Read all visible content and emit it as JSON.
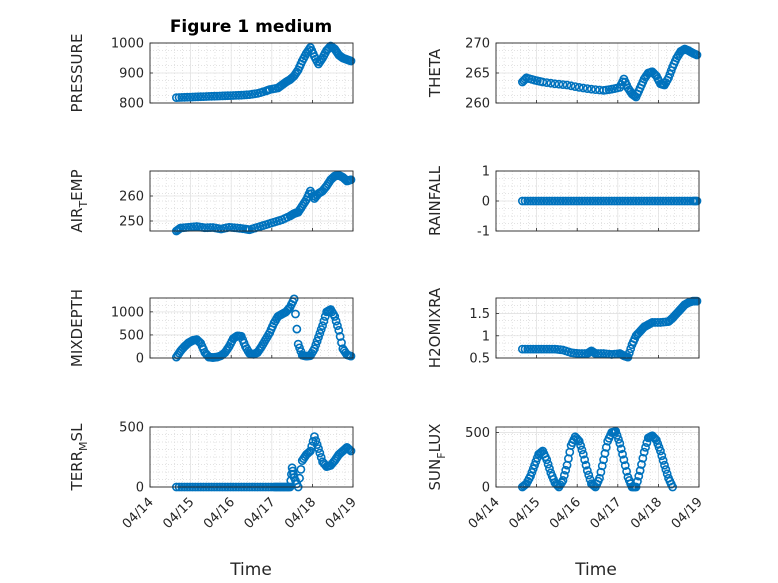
{
  "figure_title": "Figure 1 medium",
  "x_axis_label": "Time",
  "colors": {
    "marker": "#0072bd",
    "axes": "#262626",
    "grid": "#d9d9d9"
  },
  "chart_data": [
    {
      "type": "scatter",
      "ylabel": "PRESSURE",
      "ylim": [
        800,
        1000
      ],
      "yticks": [
        "800",
        "900",
        "1000"
      ],
      "xticks": [],
      "grid": true,
      "points": [
        [
          0.0,
          818
        ],
        [
          0.2,
          819
        ],
        [
          0.4,
          820
        ],
        [
          0.6,
          821
        ],
        [
          0.8,
          822
        ],
        [
          1.0,
          823
        ],
        [
          1.2,
          824
        ],
        [
          1.4,
          825
        ],
        [
          1.6,
          826
        ],
        [
          1.8,
          828
        ],
        [
          2.0,
          832
        ],
        [
          2.2,
          840
        ],
        [
          2.3,
          845
        ],
        [
          2.5,
          850
        ],
        [
          2.6,
          860
        ],
        [
          2.7,
          870
        ],
        [
          2.8,
          878
        ],
        [
          2.9,
          890
        ],
        [
          3.0,
          910
        ],
        [
          3.1,
          940
        ],
        [
          3.2,
          965
        ],
        [
          3.3,
          985
        ],
        [
          3.4,
          955
        ],
        [
          3.5,
          930
        ],
        [
          3.6,
          950
        ],
        [
          3.7,
          975
        ],
        [
          3.8,
          990
        ],
        [
          3.9,
          980
        ],
        [
          4.0,
          960
        ],
        [
          4.1,
          950
        ],
        [
          4.2,
          945
        ],
        [
          4.3,
          940
        ]
      ]
    },
    {
      "type": "scatter",
      "ylabel": "THETA",
      "ylim": [
        260,
        270
      ],
      "yticks": [
        "260",
        "265",
        "270"
      ],
      "xticks": [],
      "grid": true,
      "points": [
        [
          0.0,
          263.5
        ],
        [
          0.1,
          264.2
        ],
        [
          0.3,
          263.8
        ],
        [
          0.5,
          263.5
        ],
        [
          0.8,
          263.2
        ],
        [
          1.1,
          263.0
        ],
        [
          1.4,
          262.6
        ],
        [
          1.7,
          262.3
        ],
        [
          2.0,
          262.1
        ],
        [
          2.2,
          262.3
        ],
        [
          2.4,
          262.6
        ],
        [
          2.5,
          264.0
        ],
        [
          2.6,
          262.5
        ],
        [
          2.7,
          261.5
        ],
        [
          2.8,
          261.0
        ],
        [
          2.9,
          262.5
        ],
        [
          3.0,
          264.0
        ],
        [
          3.1,
          265.0
        ],
        [
          3.2,
          265.2
        ],
        [
          3.3,
          264.5
        ],
        [
          3.4,
          263.2
        ],
        [
          3.5,
          263.0
        ],
        [
          3.6,
          264.2
        ],
        [
          3.7,
          266.0
        ],
        [
          3.8,
          267.5
        ],
        [
          3.9,
          268.6
        ],
        [
          4.0,
          269.0
        ],
        [
          4.1,
          268.7
        ],
        [
          4.2,
          268.3
        ],
        [
          4.3,
          268.0
        ]
      ]
    },
    {
      "type": "scatter",
      "ylabel": "AIR_TEMP",
      "ylim": [
        246,
        270
      ],
      "yticks": [
        "250",
        "260"
      ],
      "xticks": [],
      "grid": true,
      "points": [
        [
          0.0,
          246.0
        ],
        [
          0.1,
          247.2
        ],
        [
          0.3,
          247.5
        ],
        [
          0.5,
          247.8
        ],
        [
          0.7,
          247.3
        ],
        [
          0.9,
          247.4
        ],
        [
          1.1,
          246.8
        ],
        [
          1.3,
          247.5
        ],
        [
          1.5,
          247.2
        ],
        [
          1.7,
          246.8
        ],
        [
          1.8,
          246.5
        ],
        [
          2.0,
          247.5
        ],
        [
          2.2,
          248.5
        ],
        [
          2.4,
          249.5
        ],
        [
          2.6,
          250.5
        ],
        [
          2.8,
          252.0
        ],
        [
          2.9,
          253.0
        ],
        [
          3.0,
          253.5
        ],
        [
          3.1,
          256.0
        ],
        [
          3.2,
          258.5
        ],
        [
          3.3,
          262.0
        ],
        [
          3.4,
          259.0
        ],
        [
          3.5,
          261.0
        ],
        [
          3.6,
          262.0
        ],
        [
          3.7,
          264.0
        ],
        [
          3.8,
          266.5
        ],
        [
          3.9,
          268.0
        ],
        [
          4.0,
          268.3
        ],
        [
          4.1,
          267.5
        ],
        [
          4.2,
          266.0
        ],
        [
          4.3,
          266.5
        ]
      ]
    },
    {
      "type": "scatter",
      "ylabel": "RAINFALL",
      "ylim": [
        -1,
        1
      ],
      "yticks": [
        "-1",
        "0",
        "1"
      ],
      "xticks": [],
      "grid": true,
      "points": [
        [
          0.0,
          0
        ],
        [
          0.2,
          0
        ],
        [
          0.4,
          0
        ],
        [
          0.6,
          0
        ],
        [
          0.8,
          0
        ],
        [
          1.0,
          0
        ],
        [
          1.2,
          0
        ],
        [
          1.4,
          0
        ],
        [
          1.6,
          0
        ],
        [
          1.8,
          0
        ],
        [
          2.0,
          0
        ],
        [
          2.2,
          0
        ],
        [
          2.4,
          0
        ],
        [
          2.6,
          0
        ],
        [
          2.8,
          0
        ],
        [
          3.0,
          0
        ],
        [
          3.2,
          0
        ],
        [
          3.4,
          0
        ],
        [
          3.6,
          0
        ],
        [
          3.8,
          0
        ],
        [
          4.0,
          0
        ],
        [
          4.2,
          0
        ],
        [
          4.3,
          0
        ]
      ]
    },
    {
      "type": "scatter",
      "ylabel": "MIXDEPTH",
      "ylim": [
        0,
        1300
      ],
      "yticks": [
        "0",
        "500",
        "1000"
      ],
      "xticks": [],
      "grid": true,
      "points": [
        [
          0.0,
          20
        ],
        [
          0.1,
          150
        ],
        [
          0.2,
          250
        ],
        [
          0.3,
          330
        ],
        [
          0.4,
          380
        ],
        [
          0.5,
          400
        ],
        [
          0.6,
          320
        ],
        [
          0.7,
          120
        ],
        [
          0.8,
          20
        ],
        [
          0.9,
          10
        ],
        [
          1.0,
          20
        ],
        [
          1.1,
          50
        ],
        [
          1.2,
          120
        ],
        [
          1.3,
          250
        ],
        [
          1.4,
          420
        ],
        [
          1.5,
          480
        ],
        [
          1.6,
          470
        ],
        [
          1.7,
          250
        ],
        [
          1.8,
          100
        ],
        [
          1.9,
          80
        ],
        [
          2.0,
          120
        ],
        [
          2.1,
          250
        ],
        [
          2.2,
          400
        ],
        [
          2.3,
          550
        ],
        [
          2.4,
          750
        ],
        [
          2.5,
          900
        ],
        [
          2.6,
          950
        ],
        [
          2.7,
          1000
        ],
        [
          2.8,
          1100
        ],
        [
          2.9,
          1280
        ],
        [
          3.0,
          300
        ],
        [
          3.1,
          60
        ],
        [
          3.2,
          40
        ],
        [
          3.3,
          50
        ],
        [
          3.4,
          200
        ],
        [
          3.5,
          450
        ],
        [
          3.6,
          700
        ],
        [
          3.7,
          1000
        ],
        [
          3.8,
          1050
        ],
        [
          3.9,
          900
        ],
        [
          4.0,
          600
        ],
        [
          4.1,
          200
        ],
        [
          4.2,
          70
        ],
        [
          4.3,
          40
        ]
      ]
    },
    {
      "type": "scatter",
      "ylabel": "H2OMIXRA",
      "ylim": [
        0.5,
        1.85
      ],
      "yticks": [
        "0.5",
        "1",
        "1.5"
      ],
      "xticks": [],
      "grid": true,
      "points": [
        [
          0.0,
          0.7
        ],
        [
          0.2,
          0.7
        ],
        [
          0.4,
          0.7
        ],
        [
          0.6,
          0.7
        ],
        [
          0.8,
          0.7
        ],
        [
          1.0,
          0.68
        ],
        [
          1.2,
          0.62
        ],
        [
          1.4,
          0.6
        ],
        [
          1.6,
          0.6
        ],
        [
          1.7,
          0.66
        ],
        [
          1.8,
          0.6
        ],
        [
          2.0,
          0.6
        ],
        [
          2.2,
          0.58
        ],
        [
          2.4,
          0.6
        ],
        [
          2.5,
          0.55
        ],
        [
          2.6,
          0.52
        ],
        [
          2.7,
          0.8
        ],
        [
          2.8,
          1.0
        ],
        [
          2.9,
          1.1
        ],
        [
          3.0,
          1.2
        ],
        [
          3.1,
          1.25
        ],
        [
          3.2,
          1.3
        ],
        [
          3.4,
          1.3
        ],
        [
          3.6,
          1.32
        ],
        [
          3.7,
          1.4
        ],
        [
          3.8,
          1.5
        ],
        [
          3.9,
          1.6
        ],
        [
          4.0,
          1.7
        ],
        [
          4.1,
          1.75
        ],
        [
          4.2,
          1.78
        ],
        [
          4.3,
          1.78
        ]
      ]
    },
    {
      "type": "scatter",
      "ylabel": "TERR_MSL",
      "ylim": [
        0,
        500
      ],
      "yticks": [
        "0",
        "500"
      ],
      "xticks": [
        "04/14",
        "04/15",
        "04/16",
        "04/17",
        "04/18",
        "04/19"
      ],
      "grid": true,
      "points": [
        [
          0.0,
          0
        ],
        [
          0.2,
          0
        ],
        [
          0.4,
          0
        ],
        [
          0.6,
          0
        ],
        [
          0.8,
          0
        ],
        [
          1.0,
          0
        ],
        [
          1.2,
          0
        ],
        [
          1.4,
          0
        ],
        [
          1.6,
          0
        ],
        [
          1.8,
          0
        ],
        [
          2.0,
          0
        ],
        [
          2.2,
          0
        ],
        [
          2.4,
          0
        ],
        [
          2.5,
          0
        ],
        [
          2.6,
          0
        ],
        [
          2.7,
          0
        ],
        [
          2.8,
          0
        ],
        [
          2.85,
          160
        ],
        [
          2.9,
          80
        ],
        [
          3.0,
          0
        ],
        [
          3.1,
          220
        ],
        [
          3.2,
          270
        ],
        [
          3.3,
          300
        ],
        [
          3.4,
          420
        ],
        [
          3.5,
          320
        ],
        [
          3.6,
          210
        ],
        [
          3.7,
          170
        ],
        [
          3.8,
          180
        ],
        [
          3.9,
          220
        ],
        [
          4.0,
          270
        ],
        [
          4.1,
          300
        ],
        [
          4.2,
          330
        ],
        [
          4.3,
          300
        ]
      ]
    },
    {
      "type": "scatter",
      "ylabel": "SUN_FLUX",
      "ylim": [
        0,
        550
      ],
      "yticks": [
        "0",
        "500"
      ],
      "xticks": [
        "04/14",
        "04/15",
        "04/16",
        "04/17",
        "04/18",
        "04/19"
      ],
      "grid": true,
      "points": [
        [
          0.0,
          0
        ],
        [
          0.1,
          30
        ],
        [
          0.2,
          100
        ],
        [
          0.3,
          200
        ],
        [
          0.4,
          300
        ],
        [
          0.5,
          330
        ],
        [
          0.6,
          250
        ],
        [
          0.7,
          130
        ],
        [
          0.8,
          40
        ],
        [
          0.9,
          0
        ],
        [
          1.0,
          60
        ],
        [
          1.1,
          200
        ],
        [
          1.2,
          380
        ],
        [
          1.3,
          460
        ],
        [
          1.4,
          420
        ],
        [
          1.5,
          300
        ],
        [
          1.6,
          150
        ],
        [
          1.7,
          30
        ],
        [
          1.8,
          0
        ],
        [
          1.9,
          80
        ],
        [
          2.0,
          250
        ],
        [
          2.1,
          420
        ],
        [
          2.2,
          500
        ],
        [
          2.3,
          510
        ],
        [
          2.4,
          400
        ],
        [
          2.5,
          250
        ],
        [
          2.6,
          90
        ],
        [
          2.7,
          0
        ],
        [
          2.8,
          0
        ],
        [
          2.9,
          150
        ],
        [
          3.0,
          320
        ],
        [
          3.1,
          450
        ],
        [
          3.2,
          470
        ],
        [
          3.3,
          430
        ],
        [
          3.4,
          330
        ],
        [
          3.5,
          200
        ],
        [
          3.6,
          80
        ],
        [
          3.7,
          0
        ]
      ]
    }
  ]
}
